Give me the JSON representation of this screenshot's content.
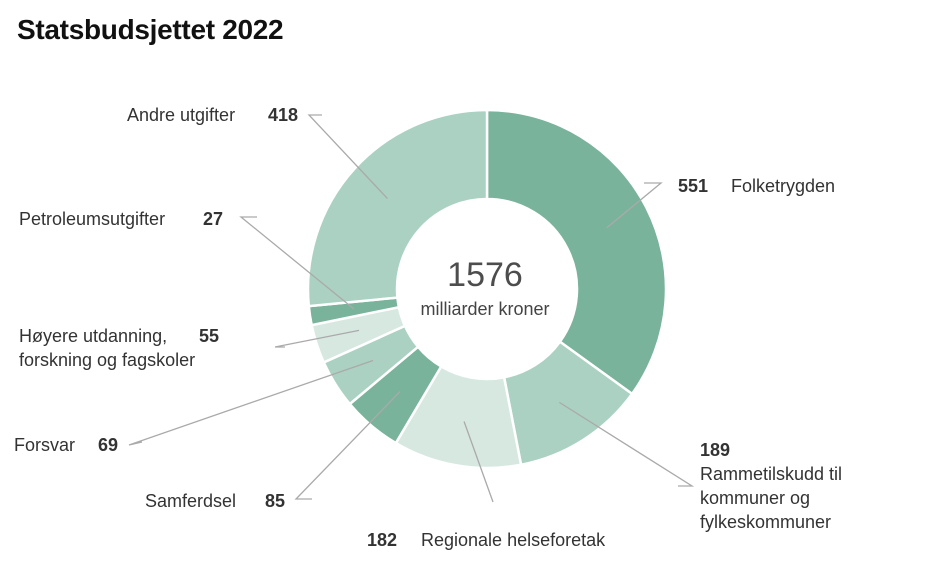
{
  "title": "Statsbudsjettet 2022",
  "chart_data": {
    "type": "pie",
    "title": "Statsbudsjettet 2022",
    "center_total": "1576",
    "center_unit": "milliarder kroner",
    "slices": [
      {
        "name": "Folketrygden",
        "value": 551,
        "color": "#79b39b"
      },
      {
        "name": "Rammetilskudd til kommuner og fylkeskommuner",
        "value": 189,
        "color": "#abd1c2"
      },
      {
        "name": "Regionale helseforetak",
        "value": 182,
        "color": "#d7e8e1"
      },
      {
        "name": "Samferdsel",
        "value": 85,
        "color": "#79b39b"
      },
      {
        "name": "Forsvar",
        "value": 69,
        "color": "#abd1c2"
      },
      {
        "name": "Høyere utdanning, forskning og fagskoler",
        "value": 55,
        "color": "#d7e8e1"
      },
      {
        "name": "Petroleumsutgifter",
        "value": 27,
        "color": "#79b39b"
      },
      {
        "name": "Andre utgifter",
        "value": 418,
        "color": "#abd1c2"
      }
    ]
  },
  "legend_lines": {
    "rammetilskudd": [
      "Rammetilskudd til",
      "kommuner og",
      "fylkeskommuner"
    ],
    "hoyere": [
      "Høyere utdanning,",
      "forskning og fagskoler"
    ],
    "forsvar": "Forsvar"
  },
  "colors": {
    "leader": "#aaaaaa",
    "separator": "#ffffff"
  }
}
